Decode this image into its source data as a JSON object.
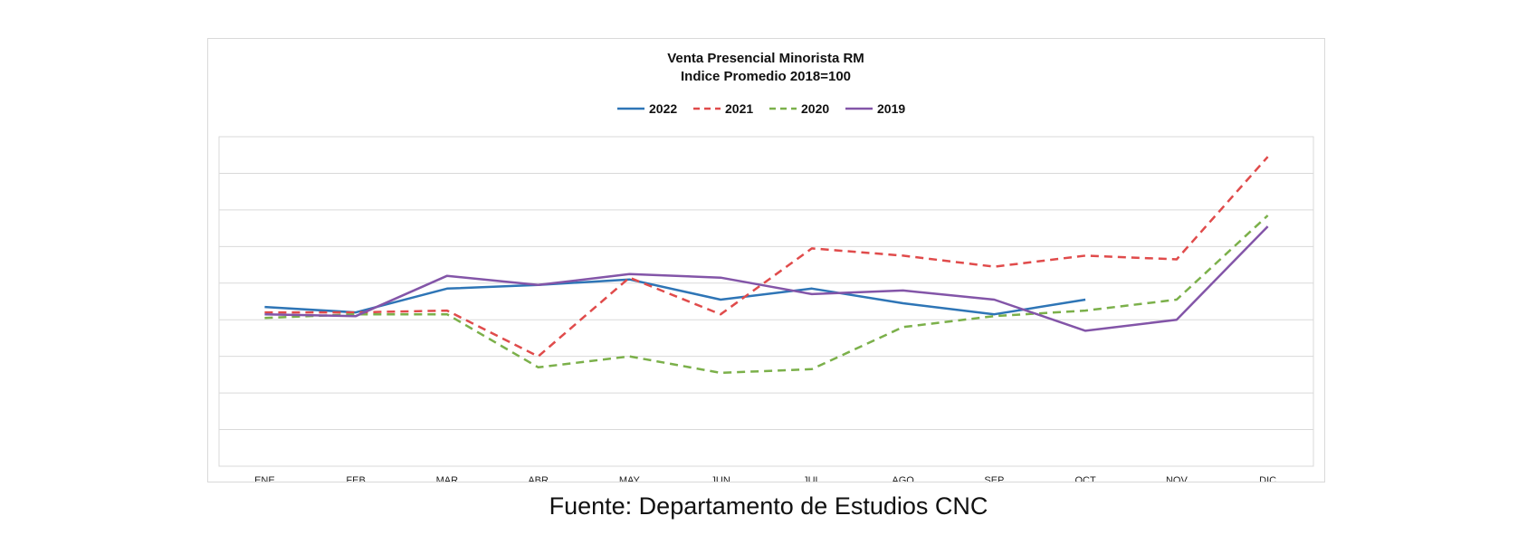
{
  "chart_data": {
    "type": "line",
    "title": "Venta Presencial Minorista RM",
    "subtitle": "Indice Promedio 2018=100",
    "xlabel": "",
    "ylabel": "",
    "categories": [
      "ENE",
      "FEB",
      "MAR",
      "ABR",
      "MAY",
      "JUN",
      "JUL",
      "AGO",
      "SEP",
      "OCT",
      "NOV",
      "DIC"
    ],
    "ylim": [
      0,
      180
    ],
    "ytick_step": 20,
    "y_tick_labels_visible": false,
    "grid": true,
    "legend_position": "top-center",
    "series": [
      {
        "name": "2022",
        "color": "#2E75B6",
        "dash": "solid",
        "values": [
          87,
          84,
          97,
          99,
          102,
          91,
          97,
          89,
          83,
          91,
          null,
          null
        ]
      },
      {
        "name": "2021",
        "color": "#E04B4B",
        "dash": "dashed",
        "values": [
          84,
          84,
          85,
          60,
          103,
          83,
          119,
          115,
          109,
          115,
          113,
          169
        ]
      },
      {
        "name": "2020",
        "color": "#7BB04A",
        "dash": "dashed",
        "values": [
          81,
          83,
          83,
          54,
          60,
          51,
          53,
          76,
          82,
          85,
          91,
          137
        ]
      },
      {
        "name": "2019",
        "color": "#8355A8",
        "dash": "solid",
        "values": [
          83,
          82,
          104,
          99,
          105,
          103,
          94,
          96,
          91,
          74,
          80,
          131
        ]
      }
    ]
  },
  "caption": "Fuente: Departamento de Estudios CNC"
}
